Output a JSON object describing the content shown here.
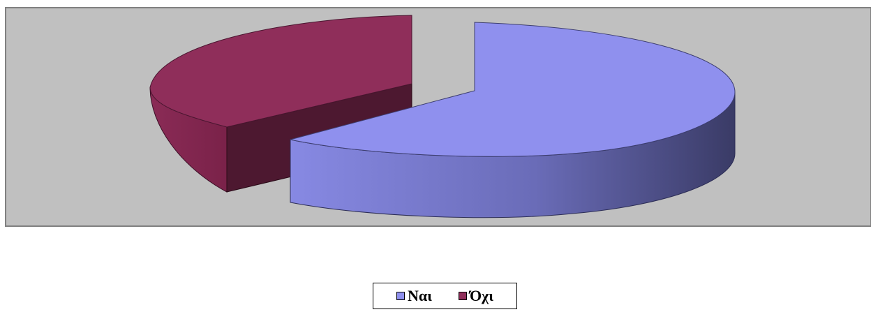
{
  "chart_data": {
    "type": "pie",
    "style": "3d-exploded",
    "categories": [
      "Ναι",
      "Όχι"
    ],
    "values": [
      60,
      40
    ],
    "colors": [
      "#8f90ee",
      "#8f2e5a"
    ],
    "title": "",
    "legend_position": "bottom"
  },
  "legend": {
    "items": [
      {
        "label": "Ναι",
        "color": "#8f90ee"
      },
      {
        "label": "Όχι",
        "color": "#8f2e5a"
      }
    ]
  },
  "plot_area": {
    "background": "#c0c0c0",
    "border": "#808080"
  }
}
